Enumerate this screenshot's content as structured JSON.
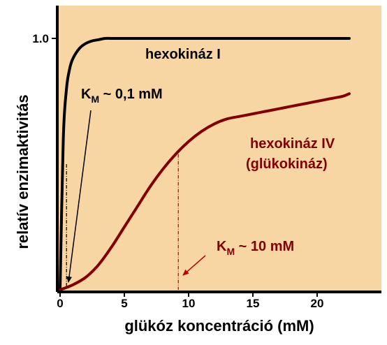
{
  "chart_data": {
    "type": "line",
    "xlabel": "glükóz koncentráció (mM)",
    "ylabel": "relatív enzimaktivitás",
    "xlim": [
      0,
      25
    ],
    "ylim": [
      0,
      1.1
    ],
    "x_ticks": [
      0,
      5,
      10,
      15,
      20
    ],
    "y_ticks": [
      1.0
    ],
    "y_tick_labels": [
      "1.0"
    ],
    "grid": false,
    "colors": {
      "background": "#f8d6a3",
      "hexokinase_I": "#000000",
      "hexokinase_IV": "#800000",
      "axis": "#000000"
    },
    "series": [
      {
        "name": "hexokináz I",
        "x": [
          0,
          0.25,
          0.5,
          0.75,
          1,
          1.5,
          2,
          2.5,
          3,
          3.5,
          4,
          5,
          6,
          8,
          10,
          15,
          20,
          22.5
        ],
        "values": [
          0,
          0.6,
          0.8,
          0.88,
          0.92,
          0.96,
          0.98,
          0.99,
          0.995,
          1.0,
          1.0,
          1.0,
          1.0,
          1.0,
          1.0,
          1.0,
          1.0,
          1.0
        ]
      },
      {
        "name": "hexokináz IV (glükokináz)",
        "x": [
          0,
          1,
          2,
          3,
          4,
          5,
          6,
          7,
          8,
          9,
          10,
          11,
          12,
          13,
          14,
          15,
          16,
          17,
          18,
          19,
          20,
          21,
          22,
          22.5
        ],
        "values": [
          0,
          0.02,
          0.05,
          0.1,
          0.17,
          0.25,
          0.33,
          0.41,
          0.48,
          0.54,
          0.59,
          0.63,
          0.66,
          0.68,
          0.69,
          0.7,
          0.71,
          0.72,
          0.73,
          0.74,
          0.75,
          0.76,
          0.77,
          0.78
        ]
      }
    ],
    "annotations": {
      "hexI_label": "hexokináz I",
      "hexIV_label_line1": "hexokináz IV",
      "hexIV_label_line2": "(glükokináz)",
      "km_hexI_prefix": "K",
      "km_hexI_sub": "M",
      "km_hexI_rest": " ~ 0,1 mM",
      "km_hexIV_prefix": "K",
      "km_hexIV_sub": "M",
      "km_hexIV_rest": " ~ 10 mM"
    },
    "km_markers": [
      {
        "x": 0.5,
        "y": 0.5
      },
      {
        "x": 9.2,
        "y": 0.54
      }
    ]
  }
}
